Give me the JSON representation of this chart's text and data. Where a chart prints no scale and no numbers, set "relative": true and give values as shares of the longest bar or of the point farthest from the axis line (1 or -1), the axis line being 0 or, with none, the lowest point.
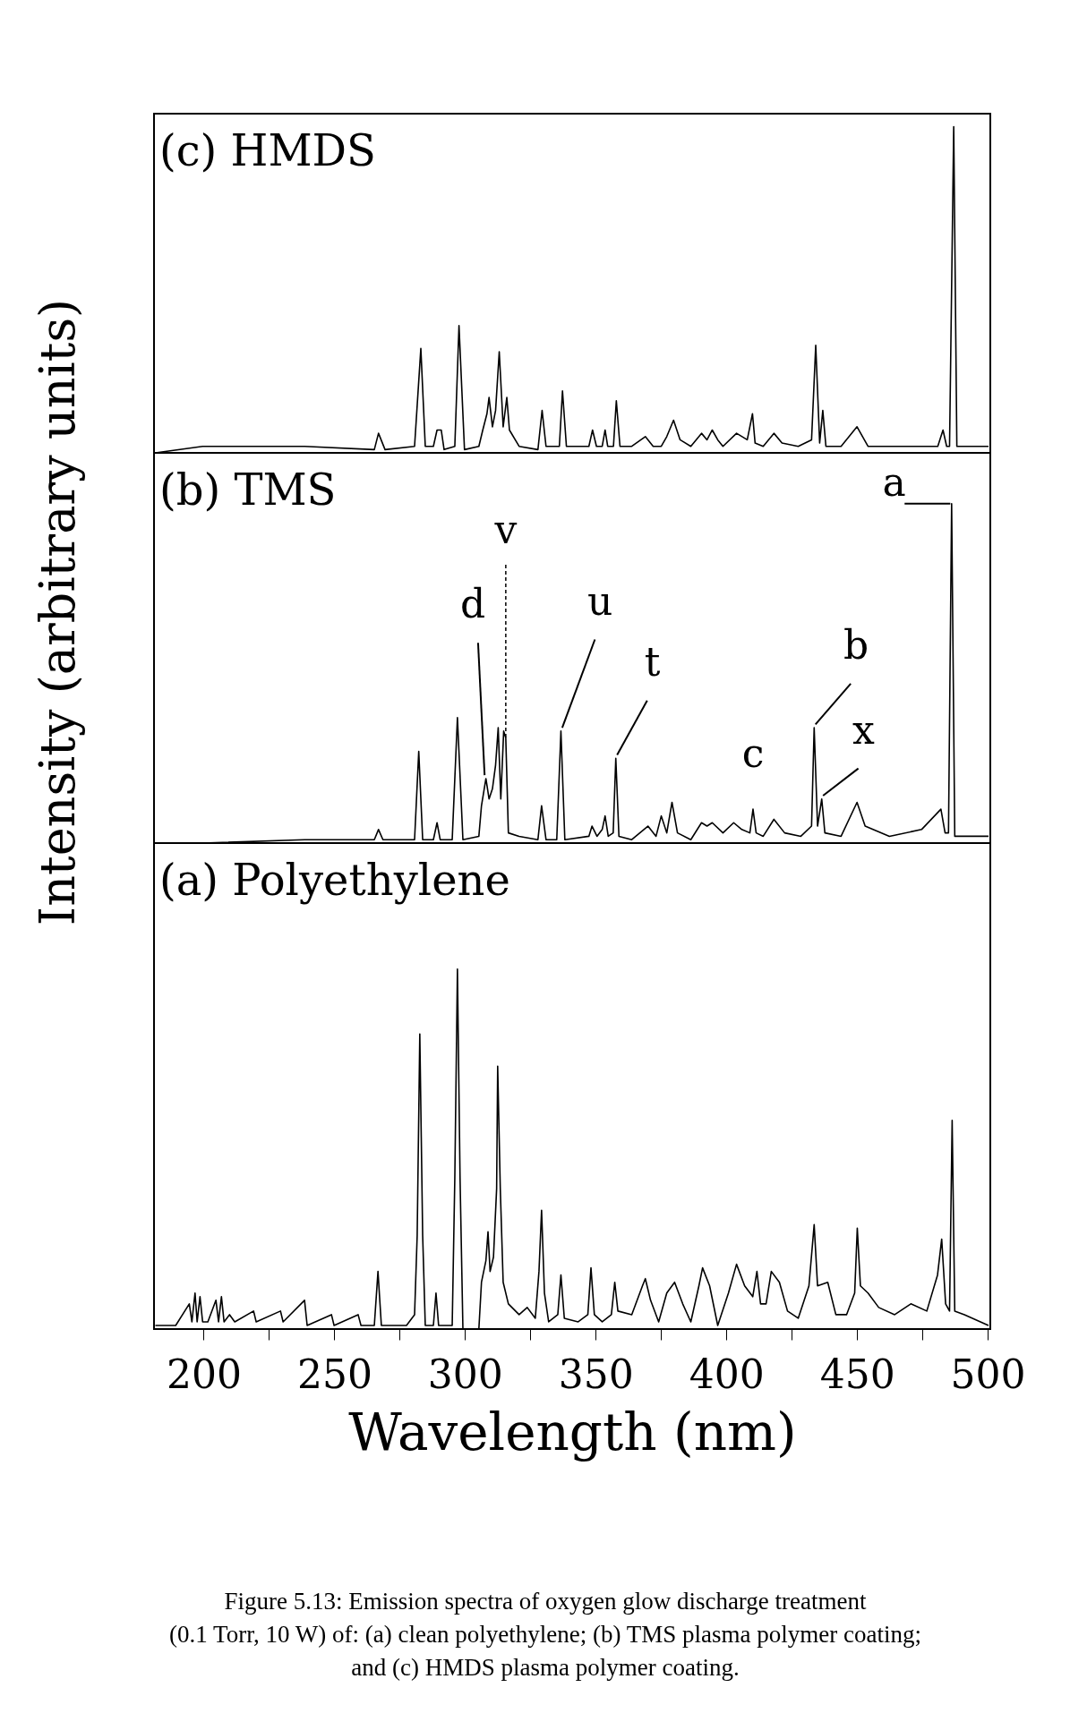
{
  "chart_data": [
    {
      "type": "line",
      "title": "(c) HMDS",
      "relative": true,
      "tick_labels": false,
      "xlim": [
        181,
        501
      ],
      "x": [
        181.5,
        199.6,
        238.6,
        265.3,
        266.9,
        269.4,
        280.7,
        283.1,
        284.8,
        287.9,
        289.3,
        290.9,
        292.0,
        296.1,
        297.7,
        299.8,
        305.3,
        306.8,
        308.4,
        309.2,
        310.5,
        311.7,
        313.1,
        314.6,
        316.0,
        317.0,
        320.7,
        327.9,
        329.5,
        331.0,
        336.1,
        337.3,
        338.8,
        347.4,
        348.8,
        350.3,
        352.5,
        353.6,
        354.6,
        356.8,
        357.9,
        359.3,
        363.8,
        369.0,
        372.0,
        375.1,
        377.2,
        379.8,
        382.3,
        386.4,
        390.5,
        392.6,
        394.6,
        396.7,
        398.7,
        403.9,
        408.0,
        410.0,
        411.0,
        414.1,
        418.2,
        421.3,
        427.5,
        432.6,
        434.2,
        435.7,
        436.9,
        438.1,
        443.9,
        450.0,
        454.2,
        466.5,
        480.9,
        482.9,
        484.3,
        485.4,
        487.0,
        488.2,
        500.3
      ],
      "series": [
        {
          "color": "#000000",
          "values": [
            0,
            0.02,
            0.02,
            0.01,
            0.06,
            0.01,
            0.02,
            0.32,
            0.02,
            0.02,
            0.07,
            0.07,
            0.01,
            0.02,
            0.39,
            0.01,
            0.02,
            0.07,
            0.12,
            0.17,
            0.08,
            0.13,
            0.31,
            0.08,
            0.17,
            0.07,
            0.02,
            0.01,
            0.13,
            0.02,
            0.02,
            0.19,
            0.02,
            0.02,
            0.07,
            0.02,
            0.02,
            0.07,
            0.02,
            0.02,
            0.16,
            0.02,
            0.02,
            0.05,
            0.02,
            0.02,
            0.05,
            0.1,
            0.04,
            0.02,
            0.06,
            0.04,
            0.07,
            0.04,
            0.02,
            0.06,
            0.04,
            0.12,
            0.03,
            0.02,
            0.06,
            0.03,
            0.02,
            0.04,
            0.33,
            0.03,
            0.13,
            0.02,
            0.02,
            0.08,
            0.02,
            0.02,
            0.02,
            0.07,
            0.02,
            0.02,
            1.0,
            0.02,
            0.02
          ]
        }
      ]
    },
    {
      "type": "line",
      "title": "(b) TMS",
      "ylabel": "Intensity (arbitrary units)",
      "relative": true,
      "tick_labels": false,
      "xlim": [
        181,
        501
      ],
      "x": [
        181.5,
        199.6,
        238.6,
        265.3,
        266.9,
        268.6,
        280.7,
        282.3,
        283.8,
        287.9,
        289.3,
        290.5,
        295.1,
        297.1,
        299.2,
        305.3,
        306.3,
        308.0,
        309.2,
        310.5,
        311.7,
        312.7,
        313.7,
        314.8,
        315.6,
        316.6,
        320.7,
        327.9,
        329.3,
        331.0,
        335.1,
        336.7,
        338.2,
        347.4,
        348.6,
        350.5,
        352.5,
        353.6,
        354.8,
        356.7,
        357.7,
        358.9,
        363.8,
        370.0,
        373.1,
        375.1,
        377.2,
        379.2,
        381.3,
        386.4,
        390.5,
        392.6,
        394.6,
        398.7,
        402.8,
        405.9,
        409.0,
        410.2,
        411.4,
        414.1,
        418.2,
        422.3,
        428.5,
        432.6,
        433.6,
        434.9,
        436.5,
        437.7,
        443.9,
        450.0,
        453.1,
        462.4,
        474.7,
        482.1,
        483.7,
        485.0,
        486.2,
        487.4,
        500.3
      ],
      "series": [
        {
          "color": "#000000",
          "values": [
            0,
            0,
            0.01,
            0.01,
            0.04,
            0.01,
            0.01,
            0.27,
            0.01,
            0.01,
            0.06,
            0.01,
            0.01,
            0.37,
            0.01,
            0.02,
            0.11,
            0.19,
            0.13,
            0.16,
            0.23,
            0.34,
            0.13,
            0.33,
            0.31,
            0.03,
            0.02,
            0.01,
            0.11,
            0.01,
            0.01,
            0.33,
            0.01,
            0.02,
            0.05,
            0.02,
            0.04,
            0.08,
            0.02,
            0.03,
            0.25,
            0.02,
            0.01,
            0.05,
            0.02,
            0.08,
            0.03,
            0.12,
            0.03,
            0.01,
            0.06,
            0.05,
            0.06,
            0.03,
            0.06,
            0.04,
            0.03,
            0.1,
            0.03,
            0.02,
            0.07,
            0.03,
            0.02,
            0.05,
            0.34,
            0.05,
            0.13,
            0.03,
            0.02,
            0.12,
            0.05,
            0.02,
            0.04,
            0.1,
            0.03,
            0.03,
            1.0,
            0.02,
            0.02
          ]
        }
      ],
      "annotations": [
        {
          "text": "a",
          "x": 486.2,
          "y": 1.0
        },
        {
          "text": "d",
          "x": 308.0,
          "y": 0.19
        },
        {
          "text": "v",
          "x": 315.6,
          "y": 0.31
        },
        {
          "text": "u",
          "x": 336.7,
          "y": 0.33
        },
        {
          "text": "t",
          "x": 357.7,
          "y": 0.25
        },
        {
          "text": "c",
          "x": 410.2,
          "y": 0.1
        },
        {
          "text": "b",
          "x": 433.6,
          "y": 0.34
        },
        {
          "text": "x",
          "x": 436.5,
          "y": 0.13
        }
      ]
    },
    {
      "type": "line",
      "title": "(a) Polyethylene",
      "xlabel": "Wavelength (nm)",
      "relative": true,
      "xlim": [
        181,
        501
      ],
      "xticks": [
        200,
        {
          "value": 225,
          "label": null
        },
        250,
        {
          "value": 275,
          "label": null
        },
        300,
        {
          "value": 325,
          "label": null
        },
        350,
        {
          "value": 375,
          "label": null
        },
        400,
        {
          "value": 425,
          "label": null
        },
        450,
        {
          "value": 475,
          "label": null
        },
        500
      ],
      "x": [
        181.5,
        189.3,
        194.5,
        195.5,
        196.7,
        197.5,
        198.6,
        199.6,
        201.6,
        204.7,
        205.7,
        206.8,
        207.8,
        209.9,
        211.9,
        219.1,
        220.1,
        229.4,
        230.4,
        238.6,
        239.6,
        248.9,
        249.9,
        259.1,
        260.2,
        265.3,
        266.7,
        268.0,
        277.6,
        280.7,
        281.7,
        282.7,
        283.8,
        284.8,
        287.9,
        288.9,
        289.9,
        295.1,
        296.1,
        297.1,
        298.1,
        299.2,
        305.3,
        306.3,
        308.0,
        308.8,
        309.6,
        310.9,
        312.1,
        312.5,
        313.5,
        314.6,
        316.6,
        320.7,
        323.8,
        326.9,
        328.3,
        329.3,
        330.4,
        332.0,
        335.5,
        336.7,
        338.0,
        343.3,
        347.0,
        348.2,
        349.5,
        352.5,
        356.0,
        357.3,
        358.5,
        363.8,
        367.9,
        369.0,
        371.0,
        374.1,
        377.2,
        380.2,
        383.3,
        386.4,
        389.5,
        390.9,
        393.6,
        396.7,
        400.8,
        403.9,
        407.0,
        410.1,
        411.7,
        413.1,
        415.2,
        417.2,
        420.3,
        423.4,
        427.5,
        431.6,
        433.6,
        434.9,
        438.8,
        441.9,
        446.0,
        449.1,
        450.1,
        451.3,
        454.2,
        458.3,
        464.4,
        470.6,
        476.7,
        480.8,
        482.4,
        483.9,
        485.4,
        486.4,
        487.4,
        491.1,
        500.3
      ],
      "series": [
        {
          "color": "#000000",
          "values": [
            0.01,
            0.01,
            0.07,
            0.02,
            0.1,
            0.02,
            0.09,
            0.02,
            0.02,
            0.08,
            0.02,
            0.09,
            0.02,
            0.04,
            0.02,
            0.05,
            0.02,
            0.05,
            0.02,
            0.08,
            0.01,
            0.04,
            0.01,
            0.04,
            0.01,
            0.01,
            0.16,
            0.01,
            0.01,
            0.04,
            0.26,
            0.82,
            0.26,
            0.01,
            0.01,
            0.1,
            0.01,
            0.01,
            0.42,
            1.0,
            0.42,
            0,
            0,
            0.13,
            0.19,
            0.27,
            0.16,
            0.2,
            0.39,
            0.73,
            0.39,
            0.13,
            0.07,
            0.04,
            0.06,
            0.03,
            0.16,
            0.33,
            0.1,
            0.02,
            0.04,
            0.15,
            0.03,
            0.02,
            0.04,
            0.17,
            0.04,
            0.02,
            0.04,
            0.13,
            0.05,
            0.04,
            0.12,
            0.14,
            0.08,
            0.02,
            0.1,
            0.13,
            0.07,
            0.02,
            0.12,
            0.17,
            0.12,
            0.01,
            0.1,
            0.18,
            0.12,
            0.09,
            0.16,
            0.07,
            0.07,
            0.16,
            0.13,
            0.05,
            0.03,
            0.12,
            0.29,
            0.12,
            0.13,
            0.04,
            0.04,
            0.1,
            0.28,
            0.12,
            0.1,
            0.06,
            0.04,
            0.07,
            0.05,
            0.15,
            0.25,
            0.07,
            0.05,
            0.58,
            0.05,
            0.04,
            0.01
          ]
        }
      ],
      "annotations": [
        "Figure 5.13: Emission spectra of oxygen glow discharge treatment",
        "(0.1 Torr, 10 W) of: (a) clean polyethylene; (b) TMS plasma polymer coating;",
        "and (c) HMDS plasma polymer coating."
      ]
    }
  ]
}
